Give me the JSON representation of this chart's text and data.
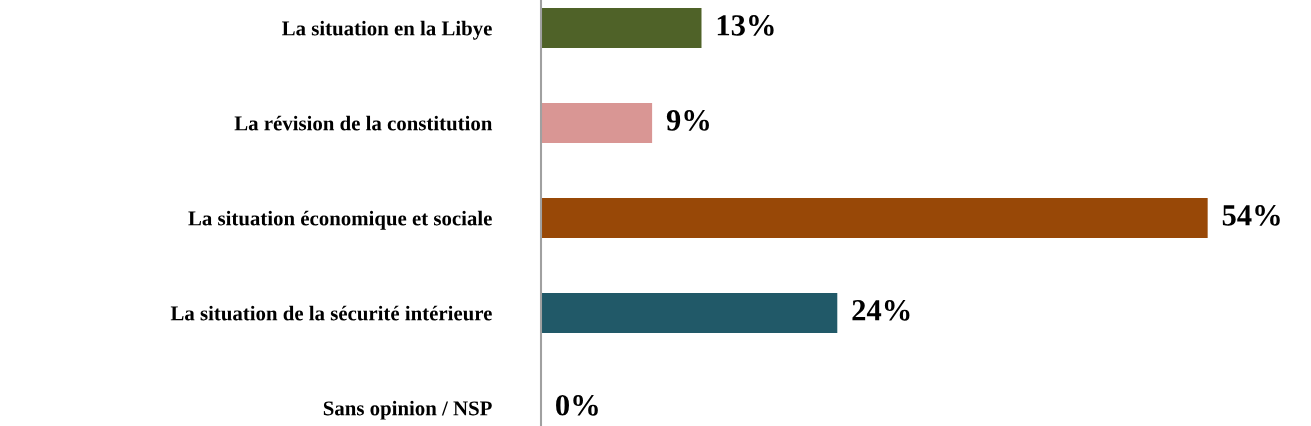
{
  "chart_data": {
    "type": "bar",
    "orientation": "horizontal",
    "categories": [
      "La situation en la Libye",
      "La révision de la constitution",
      "La situation économique et sociale",
      "La situation de la sécurité intérieure",
      "Sans opinion / NSP"
    ],
    "values": [
      13,
      9,
      54,
      24,
      0
    ],
    "colors": [
      "#4f6228",
      "#d99694",
      "#984807",
      "#215968",
      "#7f7f7f"
    ],
    "value_labels": [
      "13%",
      "9%",
      "54%",
      "24%",
      "0%"
    ]
  }
}
